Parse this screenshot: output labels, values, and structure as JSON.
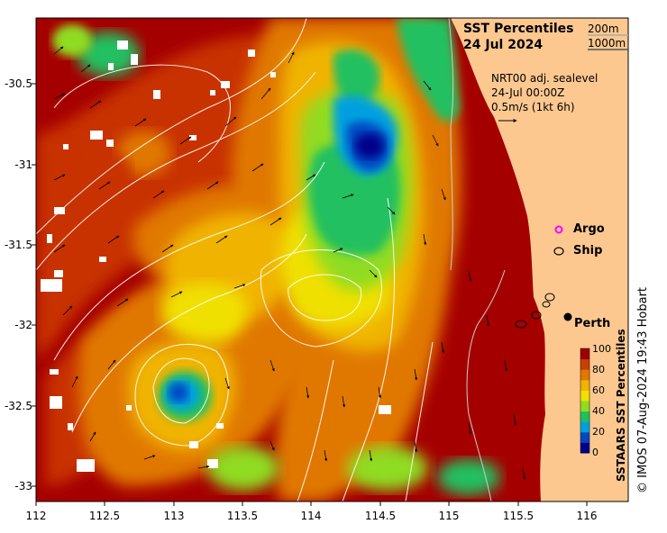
{
  "title": {
    "line1": "SST Percentiles",
    "line2": "24 Jul 2024"
  },
  "contour_legend": [
    "200m",
    "1000m"
  ],
  "current_info": {
    "line1": "NRT00 adj. sealevel",
    "line2": "24-Jul 00:00Z",
    "line3": "0.5m/s (1kt 6h)"
  },
  "markers": {
    "argo_label": "Argo",
    "ship_label": "Ship",
    "city_label": "Perth",
    "argo_color": "#ff00ff"
  },
  "axes": {
    "x_ticks": [
      "112",
      "112.5",
      "113",
      "113.5",
      "114",
      "114.5",
      "115",
      "115.5",
      "116"
    ],
    "y_ticks": [
      "-30.5",
      "-31",
      "-31.5",
      "-32",
      "-32.5",
      "-33"
    ]
  },
  "colorbar": {
    "title": "SSTAARS SST Percentiles",
    "ticks": [
      "100",
      "80",
      "60",
      "40",
      "20",
      "0"
    ],
    "colors": [
      "#00008b",
      "#0047c0",
      "#00a0e0",
      "#20c060",
      "#90dc20",
      "#f0e000",
      "#f0b400",
      "#e07800",
      "#c84000",
      "#a00000"
    ]
  },
  "credit": "© IMOS 07-Aug-2024 19:43 Hobart",
  "colors": {
    "land": "#fcc890",
    "deep_red": "#a50000",
    "red": "#c83200",
    "orange": "#e07800",
    "gold": "#f0b400",
    "yellow": "#f0e000",
    "lime": "#90dc20",
    "green": "#20c060",
    "cyan": "#00a0e0",
    "blue": "#0047c0",
    "navy": "#00008b"
  }
}
